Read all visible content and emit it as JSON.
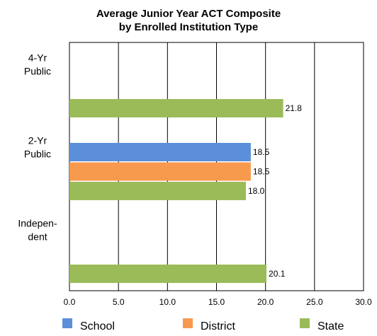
{
  "chart_data": {
    "type": "bar",
    "orientation": "horizontal",
    "title": "Average Junior Year ACT Composite",
    "subtitle": "by Enrolled Institution Type",
    "categories": [
      [
        "4-Yr",
        "Public"
      ],
      [
        "2-Yr",
        "Public"
      ],
      [
        "Indepen-",
        "dent"
      ]
    ],
    "series": [
      {
        "name": "School",
        "color": "#5B8FD9",
        "values": [
          null,
          18.5,
          null
        ]
      },
      {
        "name": "District",
        "color": "#F79A4E",
        "values": [
          null,
          18.5,
          null
        ]
      },
      {
        "name": "State",
        "color": "#9BBB59",
        "values": [
          21.8,
          18.0,
          20.1
        ]
      }
    ],
    "data_labels": [
      [
        null,
        "18.5",
        null
      ],
      [
        null,
        "18.5",
        null
      ],
      [
        "21.8",
        "18.0",
        "20.1"
      ]
    ],
    "xlim": [
      0,
      30
    ],
    "xticks": [
      "0.0",
      "5.0",
      "10.0",
      "15.0",
      "20.0",
      "25.0",
      "30.0"
    ],
    "grid": true,
    "legend": "bottom"
  }
}
